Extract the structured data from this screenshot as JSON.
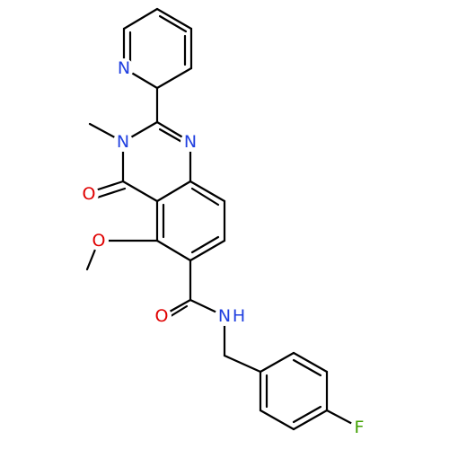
{
  "atoms": {
    "pyridine_n": "N",
    "ring_n1": "N",
    "ring_n3": "N",
    "carbonyl_o": "O",
    "methoxy_o": "O",
    "amide_o": "O",
    "amide_n": "N",
    "amide_h": "H",
    "fluorine": "F"
  }
}
